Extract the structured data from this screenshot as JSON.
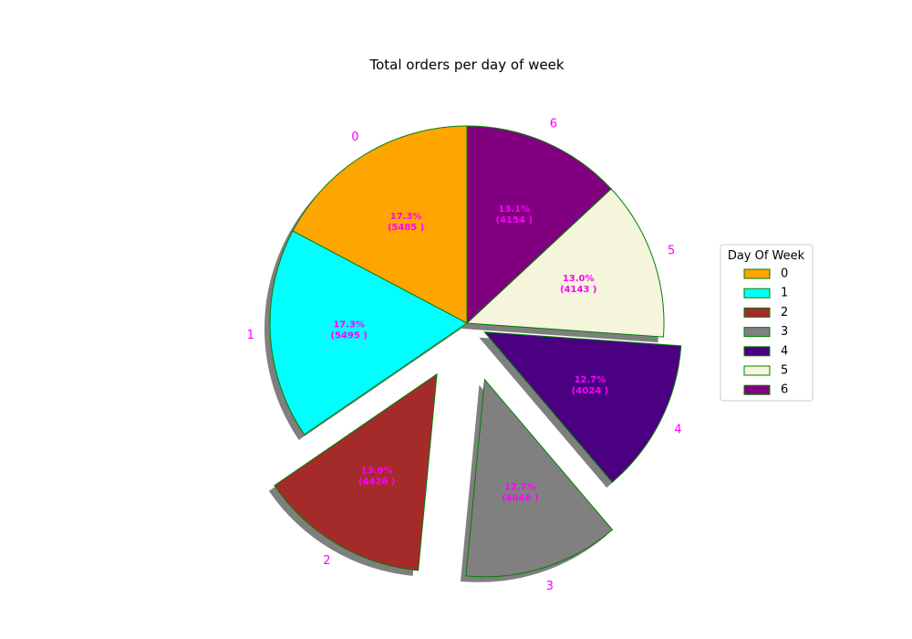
{
  "chart_data": {
    "type": "pie",
    "title": "Total orders per day of week",
    "labels": [
      "0",
      "1",
      "2",
      "3",
      "4",
      "5",
      "6"
    ],
    "values": [
      5485,
      5495,
      4426,
      4046,
      4024,
      4143,
      4154
    ],
    "percent_labels": [
      "17.3%",
      "17.3%",
      "13.9%",
      "12.7%",
      "12.7%",
      "13.0%",
      "13.1%"
    ],
    "count_labels": [
      "(5485 )",
      "(5495 )",
      "(4426 )",
      "(4046 )",
      "(4024 )",
      "(4143 )",
      "(4154 )"
    ],
    "explode": [
      0.0,
      0.0,
      0.3,
      0.3,
      0.1,
      0.0,
      0.0
    ],
    "start_angle": 90,
    "direction": "counterclockwise",
    "shadow": true,
    "colors": [
      "#FFA500",
      "#00FFFF",
      "#A52A2A",
      "#808080",
      "#4B0082",
      "#F5F5DC",
      "#800080"
    ],
    "edge_color": "#008000",
    "label_color": "#FF00FF",
    "legend": {
      "title": "Day Of Week",
      "placement": "center-right",
      "entries": [
        "0",
        "1",
        "2",
        "3",
        "4",
        "5",
        "6"
      ]
    }
  }
}
